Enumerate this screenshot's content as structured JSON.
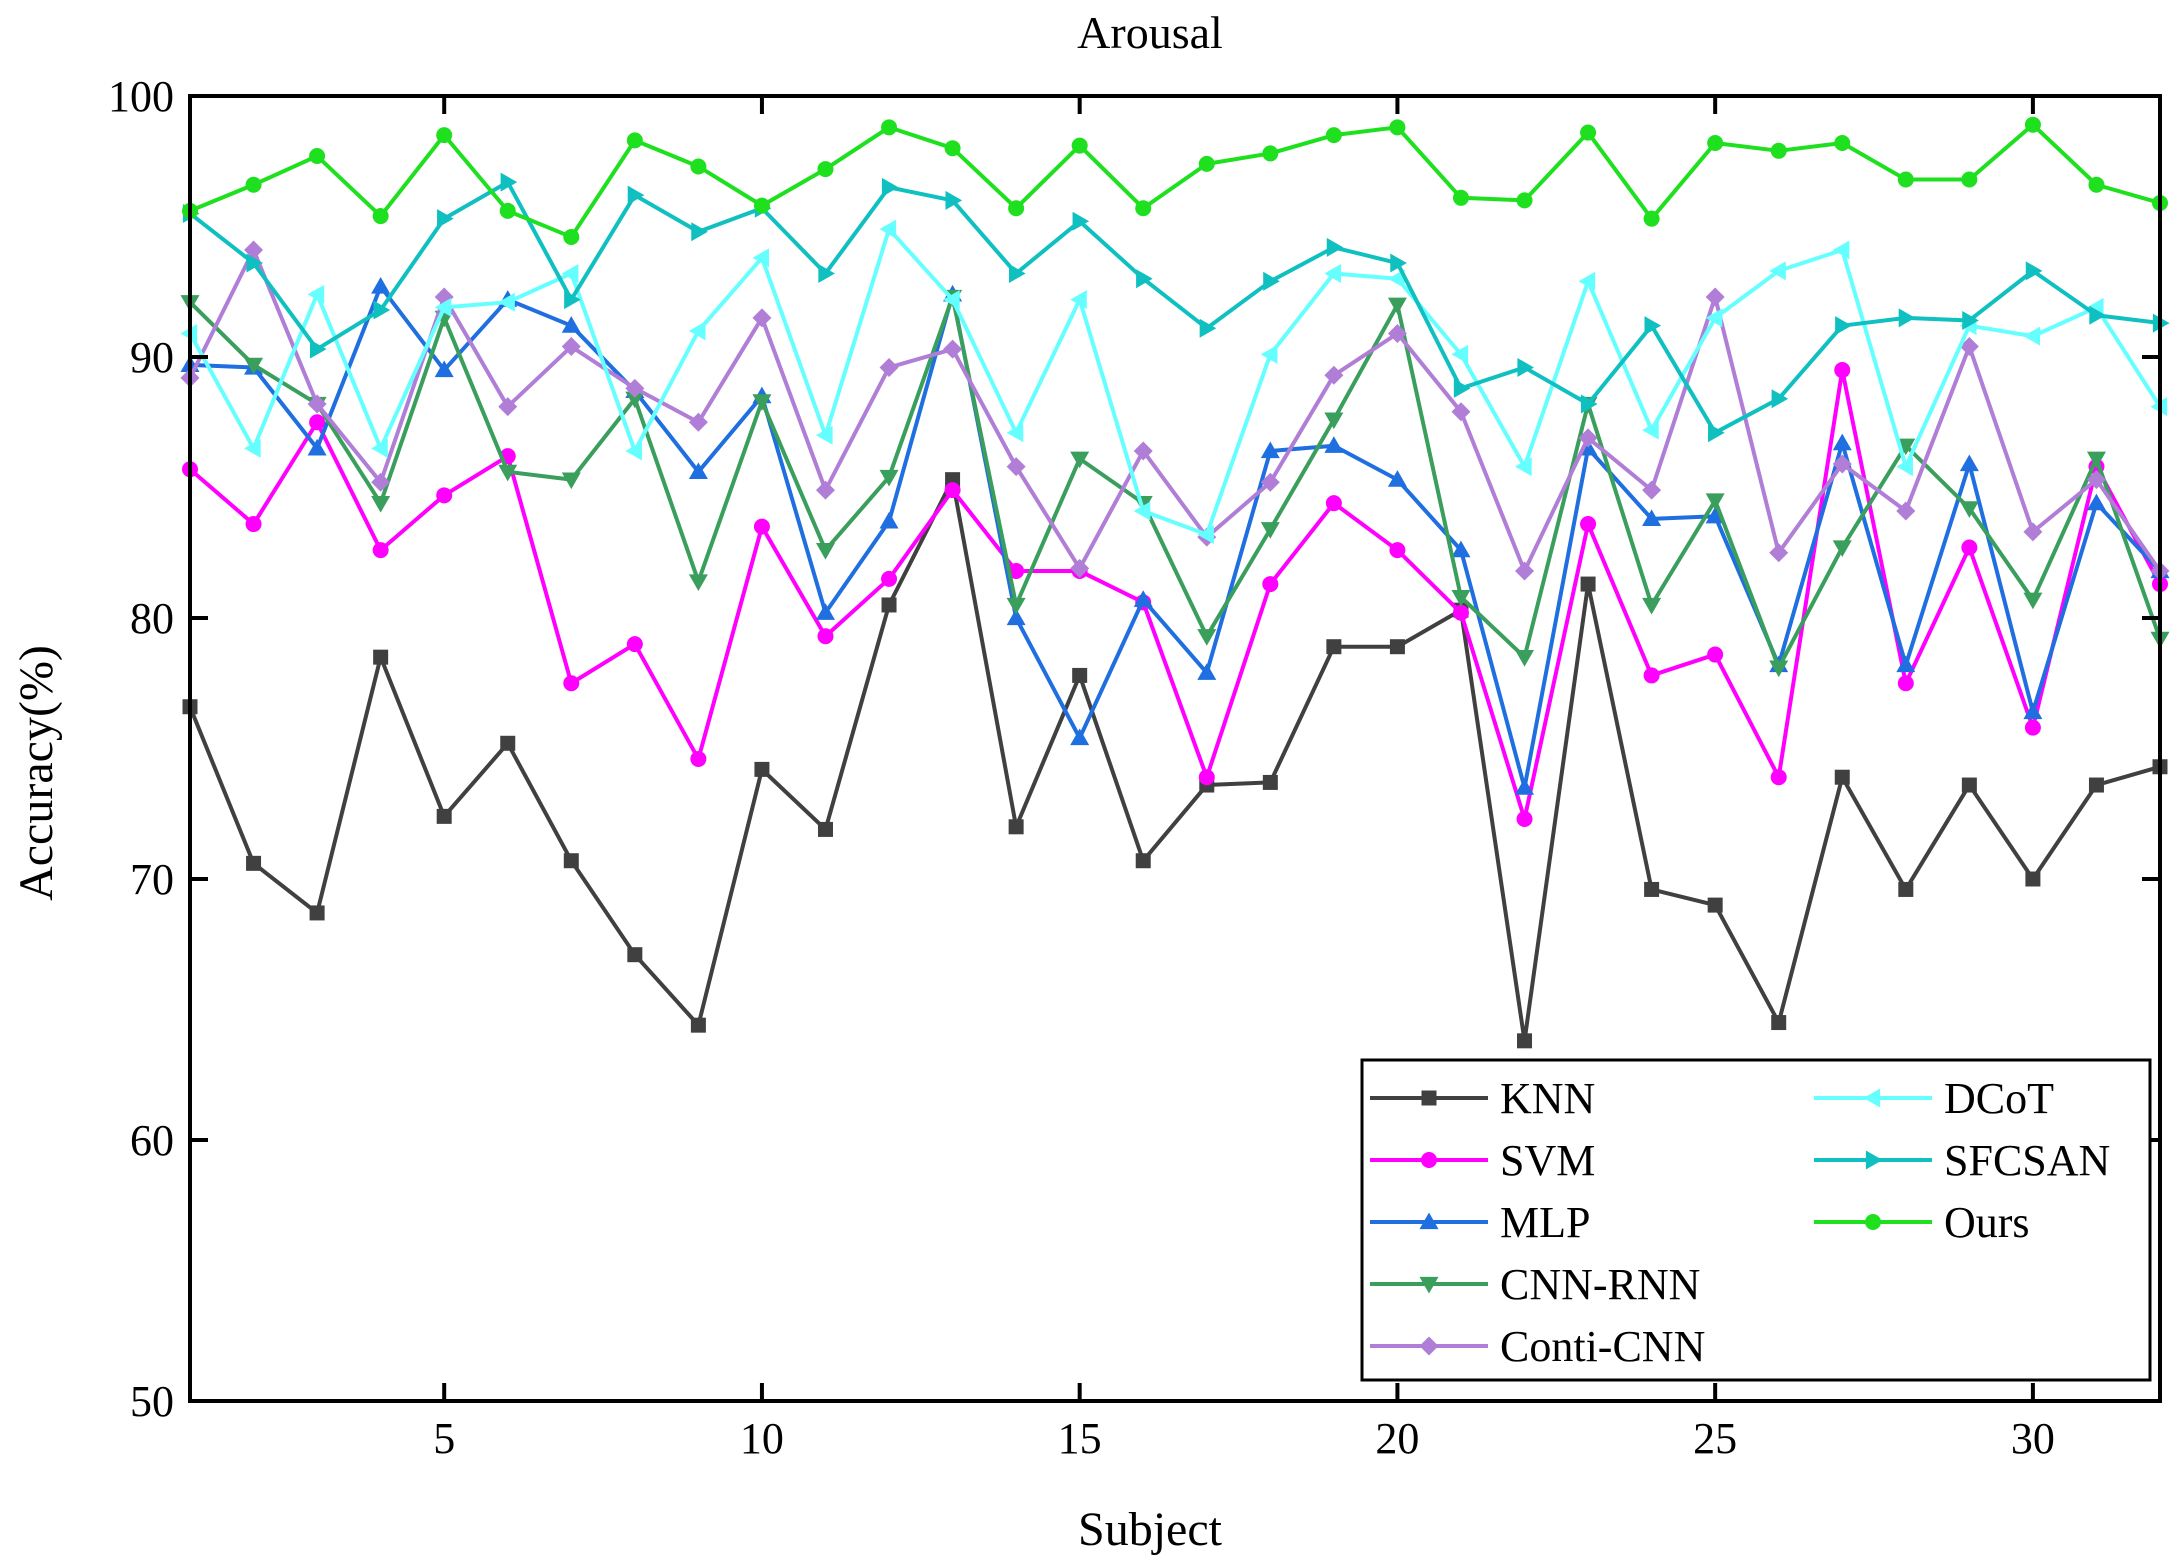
{
  "chart_data": {
    "type": "line",
    "title": "Arousal",
    "xlabel": "Subject",
    "ylabel": "Accuracy(%)",
    "xlim": [
      1,
      32
    ],
    "ylim": [
      50,
      100
    ],
    "xticks": [
      5,
      10,
      15,
      20,
      25,
      30
    ],
    "yticks": [
      50,
      60,
      70,
      80,
      90,
      100
    ],
    "legend_position": "bottom-right",
    "x": [
      1,
      2,
      3,
      4,
      5,
      6,
      7,
      8,
      9,
      10,
      11,
      12,
      13,
      14,
      15,
      16,
      17,
      18,
      19,
      20,
      21,
      22,
      23,
      24,
      25,
      26,
      27,
      28,
      29,
      30,
      31,
      32
    ],
    "series": [
      {
        "name": "KNN",
        "color": "#404040",
        "marker": "square",
        "values": [
          76.6,
          70.6,
          68.7,
          78.5,
          72.4,
          75.2,
          70.7,
          67.1,
          64.4,
          74.2,
          71.9,
          80.5,
          85.3,
          72.0,
          77.8,
          70.7,
          73.6,
          73.7,
          78.9,
          78.9,
          80.3,
          63.8,
          81.3,
          69.6,
          69.0,
          64.5,
          73.9,
          69.6,
          73.6,
          70.0,
          73.6,
          74.3
        ]
      },
      {
        "name": "SVM",
        "color": "#ff00ff",
        "marker": "circle",
        "values": [
          85.7,
          83.6,
          87.5,
          82.6,
          84.7,
          86.2,
          77.5,
          79.0,
          74.6,
          83.5,
          79.3,
          81.5,
          84.9,
          81.8,
          81.8,
          80.6,
          73.9,
          81.3,
          84.4,
          82.6,
          80.2,
          72.3,
          83.6,
          77.8,
          78.6,
          73.9,
          89.5,
          77.5,
          82.7,
          75.8,
          85.8,
          81.3
        ]
      },
      {
        "name": "MLP",
        "color": "#1f6fe0",
        "marker": "triangle-up",
        "values": [
          89.7,
          89.6,
          86.5,
          92.7,
          89.5,
          92.2,
          91.2,
          88.7,
          85.6,
          88.5,
          80.2,
          83.7,
          92.4,
          80.0,
          75.4,
          80.7,
          77.9,
          86.4,
          86.6,
          85.3,
          82.6,
          73.5,
          86.5,
          83.8,
          83.9,
          78.2,
          86.7,
          78.2,
          85.9,
          76.4,
          84.4,
          81.8
        ]
      },
      {
        "name": "CNN-RNN",
        "color": "#3a9e5c",
        "marker": "triangle-down",
        "values": [
          92.1,
          89.7,
          88.2,
          84.4,
          91.5,
          85.6,
          85.3,
          88.4,
          81.4,
          88.3,
          82.6,
          85.4,
          92.3,
          80.5,
          86.1,
          84.4,
          79.3,
          83.4,
          87.6,
          92.0,
          80.8,
          78.5,
          88.2,
          80.5,
          84.5,
          78.1,
          82.7,
          86.6,
          84.2,
          80.7,
          86.1,
          79.2
        ]
      },
      {
        "name": "Conti-CNN",
        "color": "#b07ed6",
        "marker": "diamond",
        "values": [
          89.2,
          94.1,
          88.2,
          85.2,
          92.3,
          88.1,
          90.4,
          88.8,
          87.5,
          91.5,
          84.9,
          89.6,
          90.3,
          85.8,
          81.9,
          86.4,
          83.1,
          85.2,
          89.3,
          90.9,
          87.9,
          81.8,
          86.9,
          84.9,
          92.3,
          82.5,
          85.9,
          84.1,
          90.4,
          83.3,
          85.3,
          81.8
        ]
      },
      {
        "name": "DCoT",
        "color": "#66ffff",
        "marker": "triangle-left",
        "values": [
          90.9,
          86.5,
          92.4,
          86.5,
          91.9,
          92.1,
          93.2,
          86.4,
          91.0,
          93.8,
          87.0,
          94.9,
          92.2,
          87.1,
          92.2,
          84.1,
          83.2,
          90.1,
          93.2,
          93.0,
          90.1,
          85.8,
          92.9,
          87.2,
          91.5,
          93.3,
          94.1,
          85.8,
          91.2,
          90.8,
          91.9,
          88.1
        ]
      },
      {
        "name": "SFCSAN",
        "color": "#10c0c0",
        "marker": "triangle-right",
        "values": [
          95.5,
          93.6,
          90.3,
          91.8,
          95.3,
          96.7,
          92.2,
          96.2,
          94.8,
          95.7,
          93.2,
          96.5,
          96.0,
          93.2,
          95.2,
          93.0,
          91.1,
          92.9,
          94.2,
          93.6,
          88.8,
          89.6,
          88.2,
          91.2,
          87.1,
          88.4,
          91.2,
          91.5,
          91.4,
          93.3,
          91.6,
          91.3
        ]
      },
      {
        "name": "Ours",
        "color": "#1ee01e",
        "marker": "circle",
        "values": [
          95.6,
          96.6,
          97.7,
          95.4,
          98.5,
          95.6,
          94.6,
          98.3,
          97.3,
          95.8,
          97.2,
          98.8,
          98.0,
          95.7,
          98.1,
          95.7,
          97.4,
          97.8,
          98.5,
          98.8,
          96.1,
          96.0,
          98.6,
          95.3,
          98.2,
          97.9,
          98.2,
          96.8,
          96.8,
          98.9,
          96.6,
          95.9
        ]
      }
    ]
  }
}
